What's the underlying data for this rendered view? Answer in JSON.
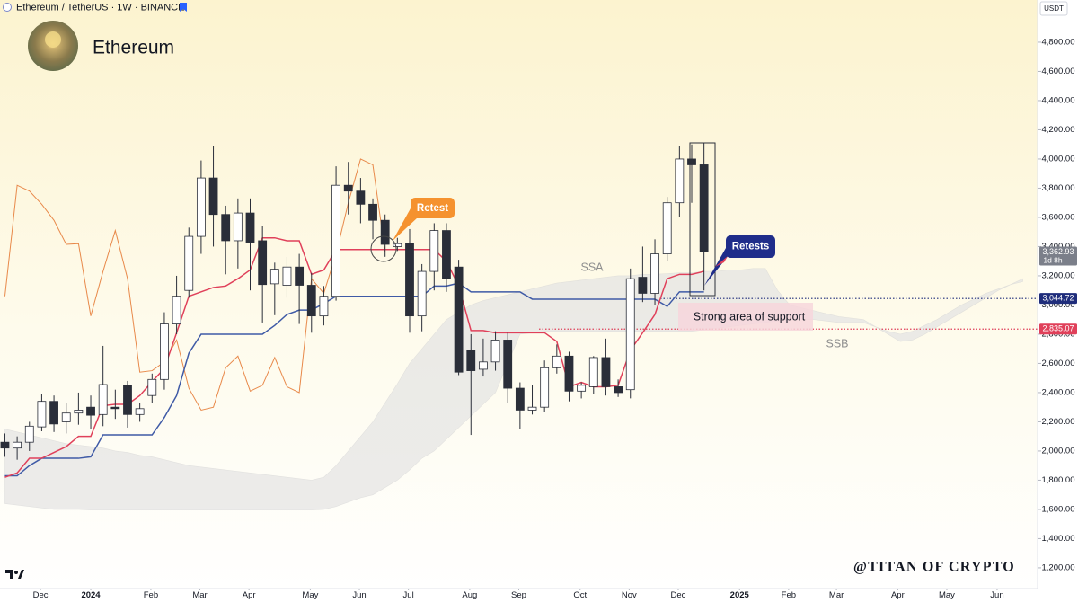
{
  "header": {
    "symbol": "Ethereum / TetherUS · 1W · BINANCE",
    "name": "Ethereum",
    "currency": "USDT"
  },
  "watermark": "@TITAN OF CRYPTO",
  "chart_data": {
    "type": "candlestick",
    "xlim": [
      -0.4,
      84.2
    ],
    "xticks": [
      {
        "value": 2.9,
        "label": "Dec"
      },
      {
        "value": 7.0,
        "label": "2024"
      },
      {
        "value": 11.9,
        "label": "Feb"
      },
      {
        "value": 15.9,
        "label": "Mar"
      },
      {
        "value": 19.9,
        "label": "Apr"
      },
      {
        "value": 24.9,
        "label": "May"
      },
      {
        "value": 28.9,
        "label": "Jun"
      },
      {
        "value": 32.9,
        "label": "Jul"
      },
      {
        "value": 37.9,
        "label": "Aug"
      },
      {
        "value": 41.9,
        "label": "Sep"
      },
      {
        "value": 46.9,
        "label": "Oct"
      },
      {
        "value": 50.9,
        "label": "Nov"
      },
      {
        "value": 54.9,
        "label": "Dec"
      },
      {
        "value": 59.9,
        "label": "2025"
      },
      {
        "value": 63.9,
        "label": "Feb"
      },
      {
        "value": 67.8,
        "label": "Mar"
      },
      {
        "value": 72.8,
        "label": "Apr"
      },
      {
        "value": 76.8,
        "label": "May"
      },
      {
        "value": 80.9,
        "label": "Jun"
      }
    ],
    "ylim": [
      1058,
      5089
    ],
    "yticks": [
      {
        "value": 1200,
        "label": "1,200.00"
      },
      {
        "value": 1400,
        "label": "1,400.00"
      },
      {
        "value": 1600,
        "label": "1,600.00"
      },
      {
        "value": 1800,
        "label": "1,800.00"
      },
      {
        "value": 2000,
        "label": "2,000.00"
      },
      {
        "value": 2200,
        "label": "2,200.00"
      },
      {
        "value": 2400,
        "label": "2,400.00"
      },
      {
        "value": 2600,
        "label": "2,600.00"
      },
      {
        "value": 2800,
        "label": "2,800.00"
      },
      {
        "value": 3000,
        "label": "3,000.00"
      },
      {
        "value": 3200,
        "label": "3,200.00"
      },
      {
        "value": 3400,
        "label": "3,400.00"
      },
      {
        "value": 3600,
        "label": "3,600.00"
      },
      {
        "value": 3800,
        "label": "3,800.00"
      },
      {
        "value": 4000,
        "label": "4,000.00"
      },
      {
        "value": 4200,
        "label": "4,200.00"
      },
      {
        "value": 4400,
        "label": "4,400.00"
      },
      {
        "value": 4600,
        "label": "4,600.00"
      },
      {
        "value": 4800,
        "label": "4,800.00"
      }
    ],
    "grid": false,
    "up_color": "#ffffff",
    "down_color": "#2a2e39",
    "open": [
      2060,
      2020,
      2060,
      2165,
      2340,
      2200,
      2260,
      2300,
      2250,
      2300,
      2450,
      2250,
      2380,
      2490,
      2870,
      3100,
      3470,
      3870,
      3620,
      3440,
      3630,
      3440,
      3145,
      3135,
      3260,
      3135,
      2925,
      3060,
      3820,
      3780,
      3690,
      3580,
      3400,
      3420,
      2925,
      3230,
      3510,
      3260,
      2690,
      2560,
      2610,
      2760,
      2430,
      2280,
      2300,
      2570,
      2650,
      2410,
      2440,
      2640,
      2440,
      2420,
      3190,
      3080,
      3350,
      3700,
      4000,
      3960
    ],
    "high": [
      2120,
      2100,
      2200,
      2390,
      2380,
      2330,
      2400,
      2380,
      2720,
      2420,
      2480,
      2330,
      2530,
      2950,
      3200,
      3530,
      3990,
      4090,
      3680,
      3730,
      3730,
      3540,
      3290,
      3330,
      3350,
      3220,
      3130,
      3950,
      3980,
      3870,
      3730,
      3620,
      3460,
      3520,
      3280,
      3560,
      3560,
      3310,
      2800,
      2770,
      2820,
      2810,
      2470,
      2450,
      2620,
      2730,
      2680,
      2470,
      2650,
      2770,
      2490,
      3250,
      3400,
      3450,
      3740,
      4090,
      4100,
      4110
    ],
    "low": [
      1960,
      1940,
      2000,
      2135,
      2130,
      2120,
      2180,
      2150,
      2170,
      2220,
      2160,
      2200,
      2330,
      2420,
      2800,
      3050,
      3350,
      3400,
      3210,
      3250,
      3100,
      2880,
      2930,
      3050,
      2870,
      2810,
      2860,
      3030,
      3620,
      3560,
      3450,
      3330,
      3370,
      2810,
      2820,
      3100,
      3090,
      2520,
      2110,
      2510,
      2550,
      2330,
      2150,
      2250,
      2270,
      2530,
      2340,
      2360,
      2390,
      2380,
      2370,
      2360,
      3020,
      3000,
      3300,
      3600,
      3700,
      3100
    ],
    "close": [
      2020,
      2060,
      2170,
      2340,
      2185,
      2260,
      2280,
      2245,
      2455,
      2290,
      2250,
      2290,
      2490,
      2870,
      3060,
      3470,
      3870,
      3620,
      3440,
      3630,
      3430,
      3140,
      3245,
      3260,
      3135,
      2925,
      3060,
      3820,
      3780,
      3690,
      3580,
      3415,
      3420,
      2925,
      3230,
      3510,
      3180,
      2540,
      2550,
      2610,
      2760,
      2430,
      2280,
      2300,
      2570,
      2650,
      2410,
      2450,
      2640,
      2440,
      2400,
      3180,
      3080,
      3350,
      3700,
      4000,
      3960,
      3362.93
    ],
    "lines": [
      {
        "color": "#e8894a",
        "values": [
          3060,
          3820,
          3780,
          3690,
          3580,
          3415,
          3420,
          2925,
          3230,
          3510,
          3180,
          2540,
          2550,
          2610,
          2760,
          2430,
          2280,
          2300,
          2570,
          2650,
          2410,
          2450,
          2640,
          2440,
          2400,
          3180,
          3080,
          3350,
          3700,
          4000,
          3960,
          3362.93,
          null,
          null,
          null,
          null,
          null,
          null,
          null,
          null,
          null,
          null,
          null,
          null,
          null,
          null,
          null,
          null,
          null,
          null,
          null,
          null,
          null,
          null,
          null,
          null,
          null,
          null
        ]
      },
      {
        "color": "#3f5aa6",
        "values": [
          1830,
          1830,
          1900,
          1950,
          1950,
          1950,
          1950,
          1960,
          2110,
          2110,
          2110,
          2110,
          2110,
          2230,
          2380,
          2670,
          2800,
          2800,
          2800,
          2800,
          2800,
          2800,
          2860,
          2935,
          2965,
          2965,
          3010,
          3060,
          3060,
          3060,
          3060,
          3060,
          3060,
          3060,
          3060,
          3130,
          3130,
          3150,
          3090,
          3090,
          3090,
          3090,
          3090,
          3040,
          3040,
          3040,
          3040,
          3040,
          3040,
          3040,
          3040,
          3040,
          3040,
          3040,
          2990,
          3090,
          3090,
          3090
        ]
      },
      {
        "color": "#e0405a",
        "values": [
          1820,
          1850,
          1950,
          1950,
          1990,
          2030,
          2100,
          2100,
          2310,
          2320,
          2320,
          2380,
          2475,
          2565,
          2810,
          3060,
          3090,
          3120,
          3130,
          3180,
          3240,
          3460,
          3460,
          3440,
          3440,
          3210,
          3240,
          3380,
          3380,
          3380,
          3380,
          3380,
          3380,
          3380,
          3380,
          3380,
          3300,
          3130,
          2825,
          2825,
          2810,
          2810,
          2810,
          2810,
          2810,
          2750,
          2440,
          2470,
          2440,
          2440,
          2450,
          2690,
          2810,
          2935,
          3180,
          3210,
          3210,
          3230
        ]
      }
    ],
    "cloud": {
      "color": "#e4e4e4",
      "ssa": [
        2150,
        2130,
        2110,
        2090,
        2070,
        2050,
        2040,
        2030,
        2020,
        2000,
        1990,
        1970,
        1960,
        1940,
        1920,
        1900,
        1890,
        1880,
        1870,
        1860,
        1850,
        1840,
        1830,
        1820,
        1810,
        1800,
        1820,
        1900,
        2000,
        2100,
        2200,
        2330,
        2460,
        2600,
        2700,
        2800,
        2900,
        2950,
        3000,
        3030,
        3050,
        3070,
        3090,
        3110,
        3130,
        3150,
        3160,
        3170,
        3180,
        3190,
        3200,
        3200,
        3210,
        3210,
        3215,
        3220,
        3220,
        3230,
        3230,
        3240,
        3240,
        3250,
        3250,
        3100,
        3000,
        2980,
        2960,
        2940,
        2920,
        2910,
        2900,
        2850,
        2800,
        2750,
        2760,
        2800,
        2850,
        2900,
        2950,
        3000,
        3050,
        3100,
        3140,
        3180
      ],
      "ssb": [
        1640,
        1630,
        1620,
        1610,
        1600,
        1600,
        1600,
        1595,
        1595,
        1595,
        1595,
        1595,
        1595,
        1595,
        1595,
        1595,
        1595,
        1595,
        1595,
        1595,
        1595,
        1595,
        1595,
        1595,
        1595,
        1595,
        1600,
        1620,
        1650,
        1680,
        1700,
        1750,
        1800,
        1870,
        1950,
        2000,
        2080,
        2160,
        2240,
        2320,
        2400,
        2600,
        2800,
        2810,
        2820,
        2820,
        2820,
        2820,
        2820,
        2820,
        2820,
        2820,
        2820,
        2820,
        2820,
        2820,
        2820,
        2830,
        2840,
        2850,
        2860,
        2870,
        2880,
        2890,
        2900,
        2900,
        2900,
        2890,
        2880,
        2880,
        2880,
        2850,
        2820,
        2800,
        2820,
        2860,
        2900,
        2950,
        3000,
        3040,
        3080,
        3110,
        3140,
        3160
      ]
    },
    "last_price": {
      "value": 3362.93,
      "label": "3,362.93",
      "countdown": "1d 8h",
      "color": "#7b7f8a"
    },
    "levels": [
      {
        "value": 3044.72,
        "label": "3,044.72",
        "color": "#1f2d7b"
      },
      {
        "value": 2835.07,
        "label": "2,835.07",
        "color": "#e0405a"
      }
    ],
    "annotations": [
      "Retest",
      "Retests",
      "Strong area of support",
      "SSA",
      "SSB"
    ]
  }
}
